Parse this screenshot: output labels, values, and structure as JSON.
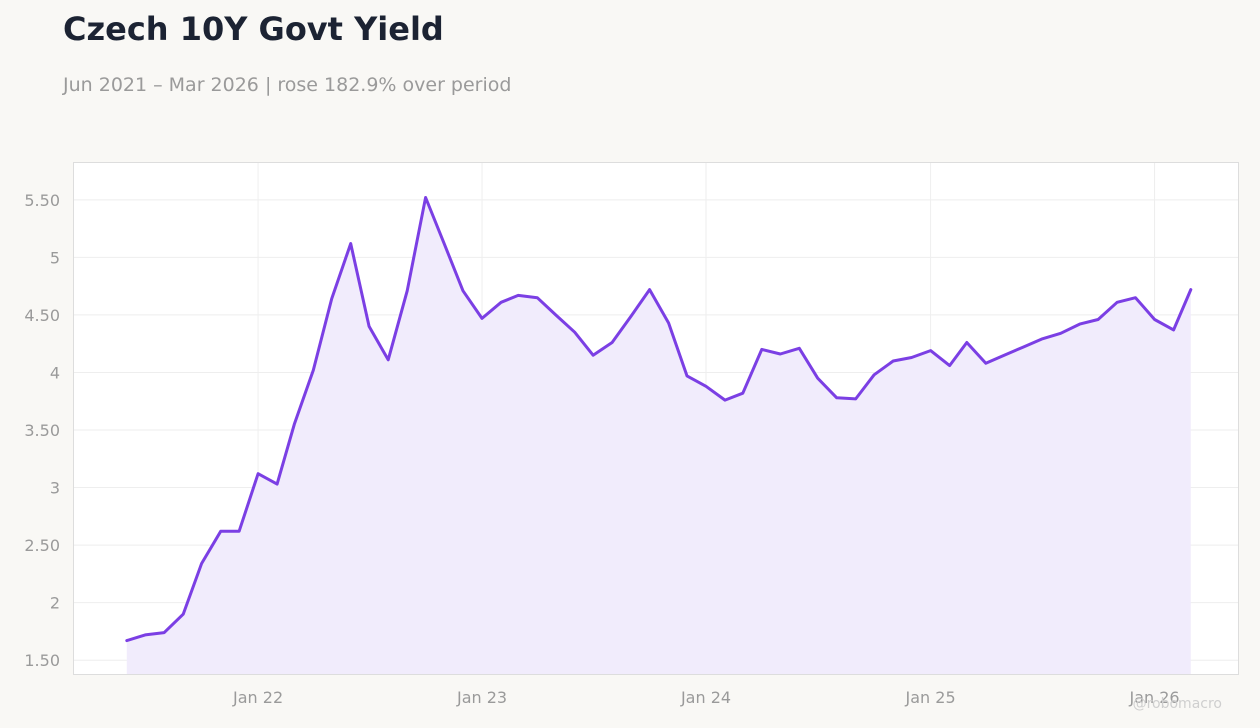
{
  "title": "Czech 10Y Govt Yield",
  "subtitle": "Jun 2021 – Mar 2026 | rose 182.9% over period",
  "watermark": "@robomacro",
  "colors": {
    "line": "#7b3fe4",
    "fill": "#f1ecfc",
    "background": "#f9f8f5",
    "plot_background": "#ffffff",
    "grid": "#eeeeee",
    "tick_text": "#9a9a9a"
  },
  "chart_data": {
    "type": "area",
    "ylim": [
      1.38,
      5.82
    ],
    "yticks": [
      1.5,
      2,
      2.5,
      3,
      3.5,
      4,
      4.5,
      5,
      5.5
    ],
    "ytick_labels": [
      "1.50",
      "2",
      "2.50",
      "3",
      "3.50",
      "4",
      "4.50",
      "5",
      "5.50"
    ],
    "xlim": [
      "2021-03-07",
      "2026-05-17"
    ],
    "xticks": [
      "2022-01-01",
      "2023-01-01",
      "2024-01-01",
      "2025-01-01",
      "2026-01-01"
    ],
    "xtick_labels": [
      "Jan 22",
      "Jan 23",
      "Jan 24",
      "Jan 25",
      "Jan 26"
    ],
    "grid": true,
    "x": [
      "2021-06-01",
      "2021-07-01",
      "2021-08-01",
      "2021-09-01",
      "2021-10-01",
      "2021-11-01",
      "2021-12-01",
      "2022-01-01",
      "2022-02-01",
      "2022-03-01",
      "2022-04-01",
      "2022-05-01",
      "2022-06-01",
      "2022-07-01",
      "2022-08-01",
      "2022-09-01",
      "2022-10-01",
      "2022-11-01",
      "2022-12-01",
      "2023-01-01",
      "2023-02-01",
      "2023-03-01",
      "2023-04-01",
      "2023-05-01",
      "2023-06-01",
      "2023-07-01",
      "2023-08-01",
      "2023-09-01",
      "2023-10-01",
      "2023-11-01",
      "2023-12-01",
      "2024-01-01",
      "2024-02-01",
      "2024-03-01",
      "2024-04-01",
      "2024-05-01",
      "2024-06-01",
      "2024-07-01",
      "2024-08-01",
      "2024-09-01",
      "2024-10-01",
      "2024-11-01",
      "2024-12-01",
      "2025-01-01",
      "2025-02-01",
      "2025-03-01",
      "2025-04-01",
      "2025-05-01",
      "2025-06-01",
      "2025-07-01",
      "2025-08-01",
      "2025-09-01",
      "2025-10-01",
      "2025-11-01",
      "2025-12-01",
      "2026-01-01",
      "2026-02-01",
      "2026-03-01"
    ],
    "y": [
      1.67,
      1.72,
      1.74,
      1.9,
      2.34,
      2.62,
      2.62,
      3.12,
      3.03,
      3.55,
      4.02,
      4.64,
      5.12,
      4.4,
      4.11,
      4.71,
      5.52,
      5.11,
      4.71,
      4.47,
      4.61,
      4.67,
      4.65,
      4.5,
      4.35,
      4.15,
      4.26,
      4.49,
      4.72,
      4.43,
      3.97,
      3.88,
      3.76,
      3.82,
      4.2,
      4.16,
      4.21,
      3.95,
      3.78,
      3.77,
      3.98,
      4.1,
      4.13,
      4.19,
      4.06,
      4.26,
      4.08,
      4.15,
      4.22,
      4.29,
      4.34,
      4.42,
      4.46,
      4.61,
      4.65,
      4.46,
      4.37,
      4.72
    ]
  }
}
